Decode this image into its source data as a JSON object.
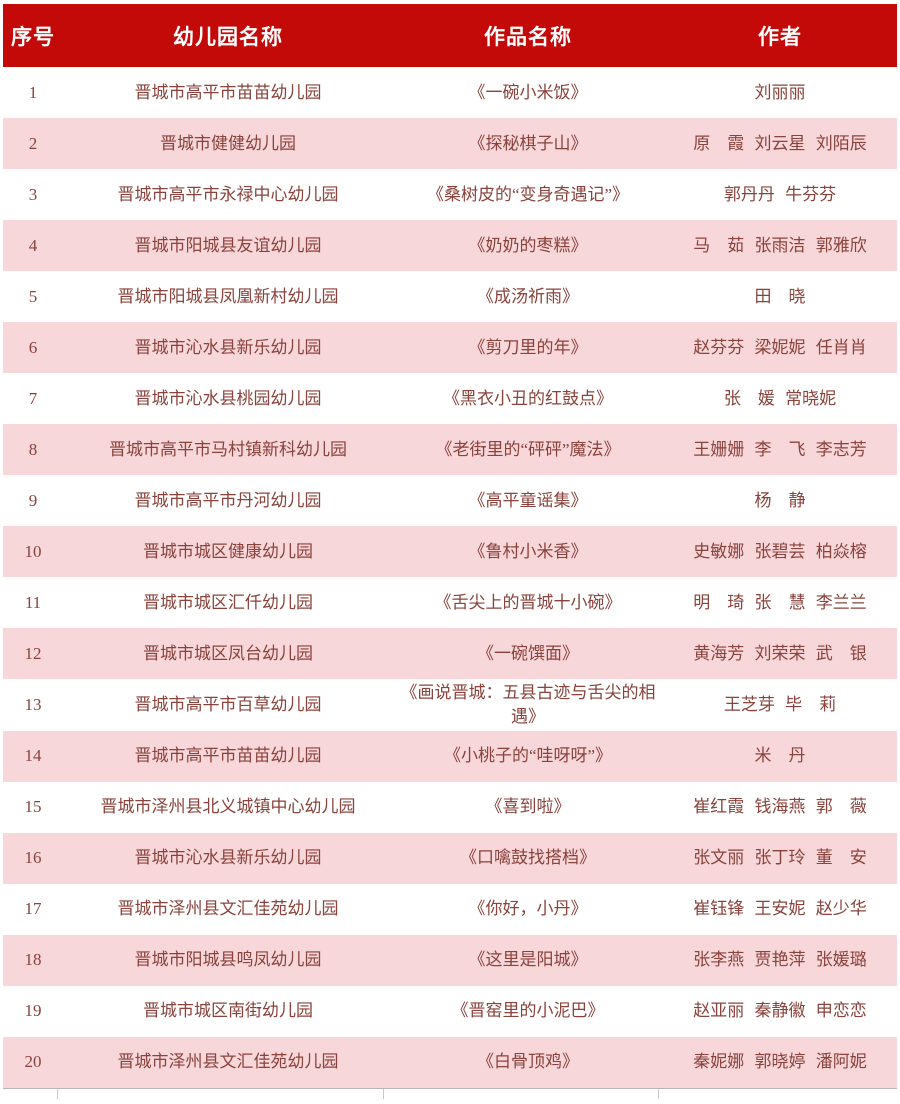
{
  "colors": {
    "header_bg": "#c40a08",
    "row_alt_bg": "#f8d7da",
    "text": "#8a423c",
    "header_text": "#ffffff"
  },
  "table": {
    "headers": [
      "序号",
      "幼儿园名称",
      "作品名称",
      "作者"
    ],
    "rows": [
      {
        "no": "1",
        "school": "晋城市高平市苗苗幼儿园",
        "work": "《一碗小米饭》",
        "authors": "刘丽丽"
      },
      {
        "no": "2",
        "school": "晋城市健健幼儿园",
        "work": "《探秘棋子山》",
        "authors": "原　霞 刘云星 刘陌辰"
      },
      {
        "no": "3",
        "school": "晋城市高平市永禄中心幼儿园",
        "work": "《桑树皮的“变身奇遇记”》",
        "authors": "郭丹丹 牛芬芬"
      },
      {
        "no": "4",
        "school": "晋城市阳城县友谊幼儿园",
        "work": "《奶奶的枣糕》",
        "authors": "马　茹 张雨洁 郭雅欣"
      },
      {
        "no": "5",
        "school": "晋城市阳城县凤凰新村幼儿园",
        "work": "《成汤祈雨》",
        "authors": "田　晓"
      },
      {
        "no": "6",
        "school": "晋城市沁水县新乐幼儿园",
        "work": "《剪刀里的年》",
        "authors": "赵芬芬 梁妮妮 任肖肖"
      },
      {
        "no": "7",
        "school": "晋城市沁水县桃园幼儿园",
        "work": "《黑衣小丑的红鼓点》",
        "authors": "张　媛 常晓妮"
      },
      {
        "no": "8",
        "school": "晋城市高平市马村镇新科幼儿园",
        "work": "《老街里的“砰砰”魔法》",
        "authors": "王姗姗 李　飞 李志芳"
      },
      {
        "no": "9",
        "school": "晋城市高平市丹河幼儿园",
        "work": "《高平童谣集》",
        "authors": "杨　静"
      },
      {
        "no": "10",
        "school": "晋城市城区健康幼儿园",
        "work": "《鲁村小米香》",
        "authors": "史敏娜 张碧芸 柏焱榕"
      },
      {
        "no": "11",
        "school": "晋城市城区汇仟幼儿园",
        "work": "《舌尖上的晋城十小碗》",
        "authors": "明　琦 张　慧 李兰兰"
      },
      {
        "no": "12",
        "school": "晋城市城区凤台幼儿园",
        "work": "《一碗馔面》",
        "authors": "黄海芳 刘荣荣 武　银"
      },
      {
        "no": "13",
        "school": "晋城市高平市百草幼儿园",
        "work": "《画说晋城：五县古迹与舌尖的相遇》",
        "authors": "王芝芽 毕　莉"
      },
      {
        "no": "14",
        "school": "晋城市高平市苗苗幼儿园",
        "work": "《小桃子的“哇呀呀”》",
        "authors": "米　丹"
      },
      {
        "no": "15",
        "school": "晋城市泽州县北义城镇中心幼儿园",
        "work": "《喜到啦》",
        "authors": "崔红霞 钱海燕 郭　薇"
      },
      {
        "no": "16",
        "school": "晋城市沁水县新乐幼儿园",
        "work": "《口噙鼓找搭档》",
        "authors": "张文丽 张丁玲 董　安"
      },
      {
        "no": "17",
        "school": "晋城市泽州县文汇佳苑幼儿园",
        "work": "《你好，小丹》",
        "authors": "崔钰锋 王安妮 赵少华"
      },
      {
        "no": "18",
        "school": "晋城市阳城县鸣凤幼儿园",
        "work": "《这里是阳城》",
        "authors": "张李燕 贾艳萍 张媛璐"
      },
      {
        "no": "19",
        "school": "晋城市城区南街幼儿园",
        "work": "《晋窑里的小泥巴》",
        "authors": "赵亚丽 秦静徽 申恋恋"
      },
      {
        "no": "20",
        "school": "晋城市泽州县文汇佳苑幼儿园",
        "work": "《白骨顶鸡》",
        "authors": "秦妮娜 郭晓婷 潘阿妮"
      }
    ]
  }
}
